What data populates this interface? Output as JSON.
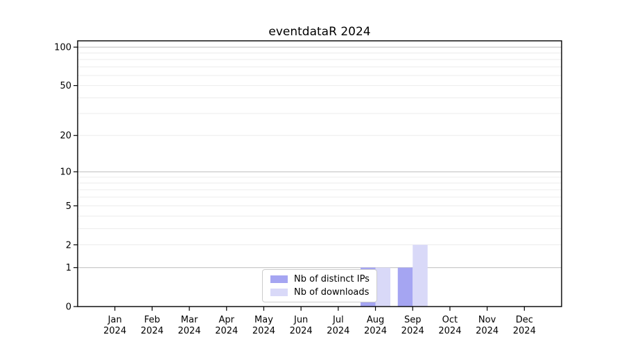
{
  "chart_data": {
    "type": "bar",
    "title": "eventdataR 2024",
    "months": [
      "Jan",
      "Feb",
      "Mar",
      "Apr",
      "May",
      "Jun",
      "Jul",
      "Aug",
      "Sep",
      "Oct",
      "Nov",
      "Dec"
    ],
    "year": "2024",
    "series": [
      {
        "name": "Nb of distinct IPs",
        "color": "#a5a5f2",
        "values": [
          0,
          0,
          0,
          0,
          0,
          0,
          0,
          1,
          1,
          0,
          0,
          0
        ]
      },
      {
        "name": "Nb of downloads",
        "color": "#d9d9f8",
        "values": [
          0,
          0,
          0,
          0,
          0,
          0,
          0,
          1,
          2,
          0,
          0,
          0
        ]
      }
    ],
    "y_axis": {
      "scale": "log1p",
      "tick_labels": [
        0,
        1,
        2,
        5,
        10,
        20,
        50,
        100
      ],
      "major_gridlines": [
        1,
        10,
        100
      ],
      "minor_gridlines": [
        2,
        3,
        4,
        5,
        6,
        7,
        8,
        9,
        20,
        30,
        40,
        50,
        60,
        70,
        80,
        90
      ],
      "ylim": [
        0,
        112
      ]
    },
    "legend": {
      "position": "lower center",
      "entries": [
        "Nb of distinct IPs",
        "Nb of downloads"
      ]
    },
    "grid": true,
    "colors": {
      "axis": "#000000",
      "text": "#000000",
      "major_grid": "#bbbbbb",
      "minor_grid": "#ececec",
      "legend_border": "#cccccc",
      "background": "#ffffff"
    }
  }
}
